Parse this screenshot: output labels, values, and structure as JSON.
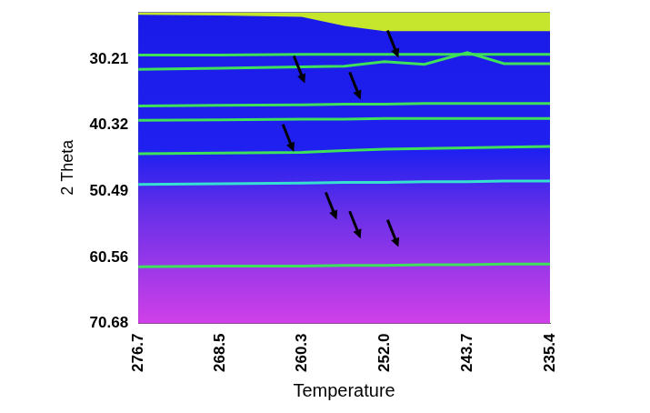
{
  "chart_data": {
    "type": "line",
    "x_label": "Temperature",
    "y_label": "2 Theta",
    "xlim": [
      276.7,
      235.4
    ],
    "xticks": [
      276.7,
      268.5,
      260.3,
      {
        "value": 252,
        "label": "252.0"
      },
      243.7,
      235.4
    ],
    "ylim": [
      70.68,
      23
    ],
    "yticks": [
      30.21,
      40.32,
      50.49,
      60.56,
      70.68
    ],
    "grid": false,
    "x": [
      276.7,
      268.5,
      260.3,
      256,
      252,
      248,
      243.7,
      240,
      235.4
    ],
    "series": [
      {
        "type": "area",
        "color": "#c6e62e",
        "values": [
          23.3,
          23.4,
          23.6,
          25.0,
          25.8,
          25.8,
          25.8,
          25.8,
          25.8
        ]
      },
      {
        "type": "line",
        "color": "#3fe05a",
        "values": [
          29.6,
          29.6,
          29.5,
          29.5,
          29.5,
          29.5,
          29.5,
          29.5,
          29.5
        ]
      },
      {
        "type": "line",
        "color": "#3fe05a",
        "values": [
          31.8,
          31.6,
          31.4,
          31.3,
          30.6,
          31.0,
          29.2,
          30.9,
          30.9
        ]
      },
      {
        "type": "line",
        "color": "#3fe05a",
        "values": [
          37.4,
          37.3,
          37.2,
          37.1,
          37.1,
          37.0,
          37.0,
          37.0,
          37.0
        ]
      },
      {
        "type": "line",
        "color": "#3fe05a",
        "values": [
          39.6,
          39.5,
          39.4,
          39.4,
          39.3,
          39.3,
          39.3,
          39.3,
          39.3
        ]
      },
      {
        "type": "line",
        "color": "#3fe05a",
        "values": [
          44.7,
          44.6,
          44.5,
          44.2,
          44.0,
          43.9,
          43.8,
          43.7,
          43.6
        ]
      },
      {
        "type": "line",
        "color": "#36e0d0",
        "values": [
          49.4,
          49.3,
          49.2,
          49.1,
          49.1,
          49.0,
          49.0,
          48.9,
          48.9
        ]
      },
      {
        "type": "line",
        "color": "#3fe05a",
        "values": [
          62.0,
          61.9,
          61.9,
          61.8,
          61.8,
          61.7,
          61.7,
          61.6,
          61.6
        ]
      }
    ],
    "arrows": [
      {
        "x": 260.0,
        "y": 33.9
      },
      {
        "x": 254.4,
        "y": 36.4
      },
      {
        "x": 250.6,
        "y": 30.0
      },
      {
        "x": 261.1,
        "y": 44.4
      },
      {
        "x": 256.8,
        "y": 54.8
      },
      {
        "x": 254.4,
        "y": 57.7
      },
      {
        "x": 250.6,
        "y": 59.0
      }
    ]
  }
}
